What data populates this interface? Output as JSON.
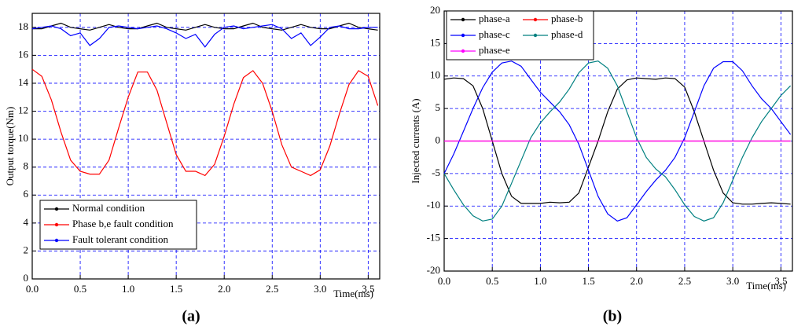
{
  "chart_data": [
    {
      "type": "line",
      "caption": "(a)",
      "x_label": "Time(ms)",
      "y_label": "Output torque(Nm)",
      "x": [
        0,
        0.1,
        0.2,
        0.3,
        0.4,
        0.5,
        0.6,
        0.7,
        0.8,
        0.9,
        1.0,
        1.1,
        1.2,
        1.3,
        1.4,
        1.5,
        1.6,
        1.7,
        1.8,
        1.9,
        2.0,
        2.1,
        2.2,
        2.3,
        2.4,
        2.5,
        2.6,
        2.7,
        2.8,
        2.9,
        3.0,
        3.1,
        3.2,
        3.3,
        3.4,
        3.5,
        3.6
      ],
      "series": [
        {
          "name": "Normal condition",
          "color": "#000000",
          "values": [
            17.9,
            17.9,
            18.1,
            18.3,
            18.0,
            17.9,
            17.8,
            18.0,
            18.2,
            18.0,
            17.9,
            17.9,
            18.1,
            18.3,
            18.0,
            17.9,
            17.8,
            18.0,
            18.2,
            18.0,
            17.9,
            17.9,
            18.1,
            18.3,
            18.0,
            17.9,
            17.8,
            18.0,
            18.2,
            18.0,
            17.9,
            17.9,
            18.1,
            18.3,
            18.0,
            17.9,
            17.8
          ]
        },
        {
          "name": "Phase b,e fault condition",
          "color": "#ff0000",
          "values": [
            15,
            14.5,
            12.8,
            10.5,
            8.5,
            7.7,
            7.5,
            7.5,
            8.5,
            10.8,
            13.0,
            14.8,
            14.8,
            13.5,
            11.2,
            8.9,
            7.7,
            7.7,
            7.4,
            8.2,
            10.2,
            12.5,
            14.4,
            14.9,
            14.0,
            12.0,
            9.6,
            8.0,
            7.7,
            7.4,
            7.8,
            9.5,
            11.8,
            13.9,
            14.9,
            14.5,
            12.4
          ]
        },
        {
          "name": "Fault tolerant condition",
          "color": "#0000ff",
          "values": [
            17.9,
            18.0,
            18.1,
            17.9,
            17.4,
            17.6,
            16.7,
            17.2,
            18.0,
            18.1,
            18.0,
            17.9,
            18.0,
            18.1,
            17.9,
            17.6,
            17.2,
            17.5,
            16.6,
            17.5,
            18.0,
            18.1,
            17.9,
            18.0,
            18.1,
            18.2,
            17.9,
            17.2,
            17.6,
            16.7,
            17.3,
            18.0,
            18.1,
            17.9,
            17.9,
            18.0,
            18.0
          ]
        }
      ],
      "xlim": [
        0,
        3.62
      ],
      "ylim": [
        0,
        19
      ],
      "xticks": [
        {
          "value": 0,
          "label": "0.0"
        },
        0.5,
        {
          "value": 1,
          "label": "1.0"
        },
        1.5,
        {
          "value": 2,
          "label": "2.0"
        },
        2.5,
        {
          "value": 3,
          "label": "3.0"
        },
        3.5
      ],
      "yticks": [
        0,
        2,
        4,
        6,
        8,
        10,
        12,
        14,
        16,
        18
      ],
      "grid": true,
      "legend": "lower left"
    },
    {
      "type": "line",
      "caption": "(b)",
      "x_label": "Time(ms)",
      "y_label": "Injected currents (A)",
      "x": [
        0,
        0.1,
        0.2,
        0.3,
        0.4,
        0.5,
        0.6,
        0.7,
        0.8,
        0.9,
        1.0,
        1.1,
        1.2,
        1.3,
        1.4,
        1.5,
        1.6,
        1.7,
        1.8,
        1.9,
        2.0,
        2.1,
        2.2,
        2.3,
        2.4,
        2.5,
        2.6,
        2.7,
        2.8,
        2.9,
        3.0,
        3.1,
        3.2,
        3.3,
        3.4,
        3.5,
        3.6
      ],
      "series": [
        {
          "name": "phase-a",
          "color": "#000000",
          "values": [
            9.5,
            9.7,
            9.6,
            8.5,
            5,
            0,
            -5,
            -8.5,
            -9.6,
            -9.6,
            -9.6,
            -9.4,
            -9.5,
            -9.4,
            -8,
            -4,
            0,
            4.5,
            8,
            9.4,
            9.7,
            9.6,
            9.5,
            9.7,
            9.6,
            8.3,
            4.5,
            0,
            -4.5,
            -8,
            -9.5,
            -9.7,
            -9.7,
            -9.6,
            -9.5,
            -9.6,
            -9.7
          ]
        },
        {
          "name": "phase-b",
          "color": "#ff0000",
          "values": [
            0,
            0,
            0,
            0,
            0,
            0,
            0,
            0,
            0,
            0,
            0,
            0,
            0,
            0,
            0,
            0,
            0,
            0,
            0,
            0,
            0,
            0,
            0,
            0,
            0,
            0,
            0,
            0,
            0,
            0,
            0,
            0,
            0,
            0,
            0,
            0,
            0
          ]
        },
        {
          "name": "phase-c",
          "color": "#0000ff",
          "values": [
            -5,
            -2,
            1.5,
            5,
            8.2,
            10.6,
            12,
            12.3,
            11.5,
            9.5,
            7.5,
            6,
            4.5,
            2.5,
            -0.5,
            -4.5,
            -8.5,
            -11.2,
            -12.3,
            -11.8,
            -9.8,
            -7.8,
            -6,
            -4.5,
            -2.5,
            0.5,
            4.5,
            8.5,
            11.2,
            12.2,
            12.2,
            10.8,
            8.5,
            6.5,
            5,
            3,
            1
          ]
        },
        {
          "name": "phase-d",
          "color": "#008080",
          "values": [
            -5,
            -7.5,
            -9.8,
            -11.5,
            -12.3,
            -12,
            -10,
            -6.5,
            -3,
            0.5,
            2.8,
            4.5,
            6,
            8,
            10.5,
            12,
            12.3,
            11.2,
            8.5,
            4.5,
            0.5,
            -2.5,
            -4.3,
            -5.5,
            -7.5,
            -9.8,
            -11.6,
            -12.3,
            -11.8,
            -9.5,
            -6,
            -2.5,
            0.5,
            3,
            5,
            7,
            8.5
          ]
        },
        {
          "name": "phase-e",
          "color": "#ff00ff",
          "values": [
            0,
            0,
            0,
            0,
            0,
            0,
            0,
            0,
            0,
            0,
            0,
            0,
            0,
            0,
            0,
            0,
            0,
            0,
            0,
            0,
            0,
            0,
            0,
            0,
            0,
            0,
            0,
            0,
            0,
            0,
            0,
            0,
            0,
            0,
            0,
            0,
            0
          ]
        }
      ],
      "xlim": [
        0,
        3.62
      ],
      "ylim": [
        -20,
        20
      ],
      "xticks": [
        {
          "value": 0,
          "label": "0.0"
        },
        0.5,
        {
          "value": 1,
          "label": "1.0"
        },
        1.5,
        {
          "value": 2,
          "label": "2.0"
        },
        2.5,
        {
          "value": 3,
          "label": "3.0"
        },
        3.5
      ],
      "yticks": [
        -20,
        -15,
        -10,
        -5,
        0,
        5,
        10,
        15,
        20
      ],
      "grid": true,
      "legend": "upper left"
    }
  ]
}
